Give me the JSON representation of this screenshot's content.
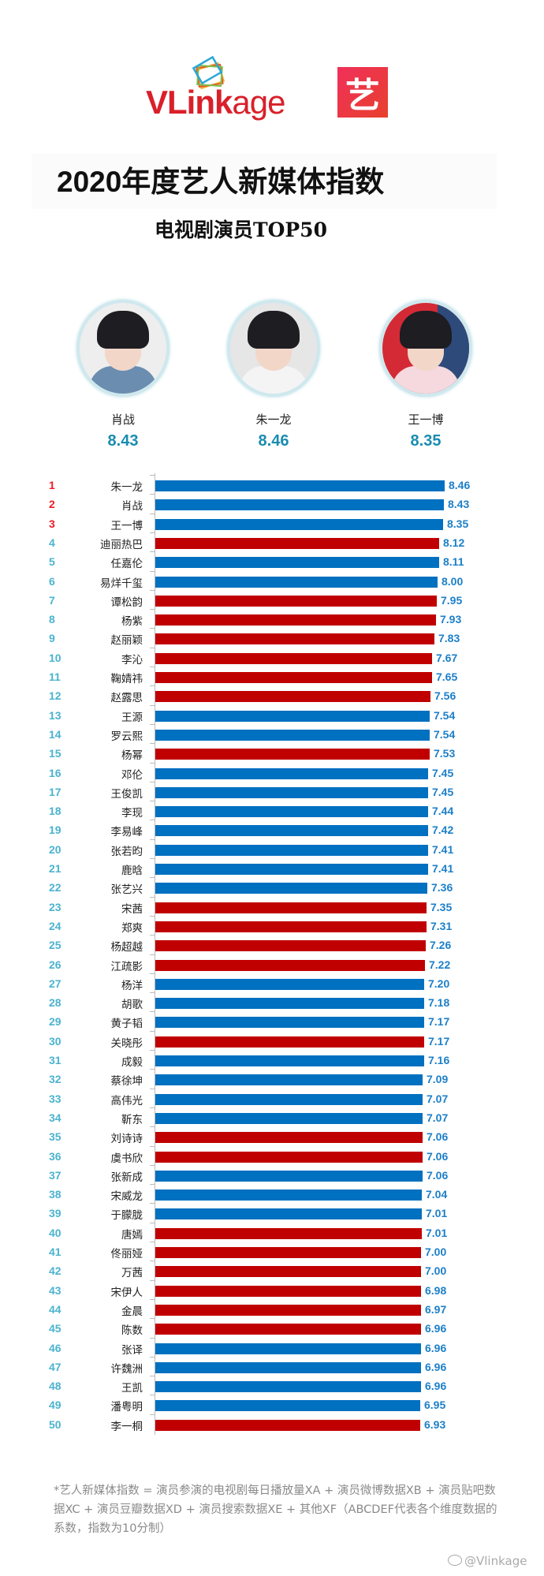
{
  "header": {
    "brand_logo_text_bold": "VLink",
    "brand_logo_text_light": "age",
    "partner_badge_char": "艺",
    "title": "2020年度艺人新媒体指数",
    "subtitle": "电视剧演员TOP50"
  },
  "podium": [
    {
      "name": "肖战",
      "score": "8.43",
      "position": "left"
    },
    {
      "name": "朱一龙",
      "score": "8.46",
      "position": "center"
    },
    {
      "name": "王一博",
      "score": "8.35",
      "position": "right"
    }
  ],
  "colors": {
    "male_bar": "#0070c0",
    "female_bar": "#c00000",
    "top3_rank": "#ee1c25",
    "rank": "#4bb3cf",
    "value_label": "#1c7fc8",
    "podium_score": "#1a8cb0",
    "brand_red": "#d9202a"
  },
  "chart_data": {
    "type": "bar",
    "orientation": "horizontal",
    "title": "2020年度艺人新媒体指数 电视剧演员TOP50",
    "xlabel": "",
    "ylabel": "",
    "grid": false,
    "legend": "none (bar color encodes gender: blue = male, red = female)",
    "categories": [
      "朱一龙",
      "肖战",
      "王一博",
      "迪丽热巴",
      "任嘉伦",
      "易烊千玺",
      "谭松韵",
      "杨紫",
      "赵丽颖",
      "李沁",
      "鞠婧祎",
      "赵露思",
      "王源",
      "罗云熙",
      "杨幂",
      "邓伦",
      "王俊凯",
      "李现",
      "李易峰",
      "张若昀",
      "鹿晗",
      "张艺兴",
      "宋茜",
      "郑爽",
      "杨超越",
      "江疏影",
      "杨洋",
      "胡歌",
      "黄子韬",
      "关晓彤",
      "成毅",
      "蔡徐坤",
      "高伟光",
      "靳东",
      "刘诗诗",
      "虞书欣",
      "张新成",
      "宋威龙",
      "于朦胧",
      "唐嫣",
      "佟丽娅",
      "万茜",
      "宋伊人",
      "金晨",
      "陈数",
      "张译",
      "许魏洲",
      "王凯",
      "潘粤明",
      "李一桐"
    ],
    "values": [
      8.46,
      8.43,
      8.35,
      8.12,
      8.11,
      8.0,
      7.95,
      7.93,
      7.83,
      7.67,
      7.65,
      7.56,
      7.54,
      7.54,
      7.53,
      7.45,
      7.45,
      7.44,
      7.42,
      7.41,
      7.41,
      7.36,
      7.35,
      7.31,
      7.26,
      7.22,
      7.2,
      7.18,
      7.17,
      7.17,
      7.16,
      7.09,
      7.07,
      7.07,
      7.06,
      7.06,
      7.06,
      7.04,
      7.01,
      7.01,
      7.0,
      7.0,
      6.98,
      6.97,
      6.96,
      6.96,
      6.96,
      6.96,
      6.95,
      6.93
    ],
    "value_labels": [
      "8.46",
      "8.43",
      "8.35",
      "8.12",
      "8.11",
      "8.00",
      "7.95",
      "7.93",
      "7.83",
      "7.67",
      "7.65",
      "7.56",
      "7.54",
      "7.54",
      "7.53",
      "7.45",
      "7.45",
      "7.44",
      "7.42",
      "7.41",
      "7.41",
      "7.36",
      "7.35",
      "7.31",
      "7.26",
      "7.22",
      "7.20",
      "7.18",
      "7.17",
      "7.17",
      "7.16",
      "7.09",
      "7.07",
      "7.07",
      "7.06",
      "7.06",
      "7.06",
      "7.04",
      "7.01",
      "7.01",
      "7.00",
      "7.00",
      "6.98",
      "6.97",
      "6.96",
      "6.96",
      "6.96",
      "6.96",
      "6.95",
      "6.93"
    ],
    "bar_colors": [
      "blue",
      "blue",
      "blue",
      "red",
      "blue",
      "blue",
      "red",
      "red",
      "red",
      "red",
      "red",
      "red",
      "blue",
      "blue",
      "red",
      "blue",
      "blue",
      "blue",
      "blue",
      "blue",
      "blue",
      "blue",
      "red",
      "red",
      "red",
      "red",
      "blue",
      "blue",
      "blue",
      "red",
      "blue",
      "blue",
      "blue",
      "blue",
      "red",
      "red",
      "blue",
      "blue",
      "blue",
      "red",
      "red",
      "red",
      "red",
      "red",
      "red",
      "blue",
      "blue",
      "blue",
      "blue",
      "red"
    ],
    "ranks": [
      "1",
      "2",
      "3",
      "4",
      "5",
      "6",
      "7",
      "8",
      "9",
      "10",
      "11",
      "12",
      "13",
      "14",
      "15",
      "16",
      "17",
      "18",
      "19",
      "20",
      "21",
      "22",
      "23",
      "24",
      "25",
      "26",
      "27",
      "28",
      "29",
      "30",
      "31",
      "32",
      "33",
      "34",
      "35",
      "36",
      "37",
      "38",
      "39",
      "40",
      "41",
      "42",
      "43",
      "44",
      "45",
      "46",
      "47",
      "48",
      "49",
      "50"
    ]
  },
  "footer": {
    "note": "*艺人新媒体指数 = 演员参演的电视剧每日播放量XA + 演员微博数据XB + 演员贴吧数据XC + 演员豆瓣数据XD + 演员搜索数据XE + 其他XF（ABCDEF代表各个维度数据的系数，指数为10分制）",
    "watermark": "@Vlinkage"
  }
}
